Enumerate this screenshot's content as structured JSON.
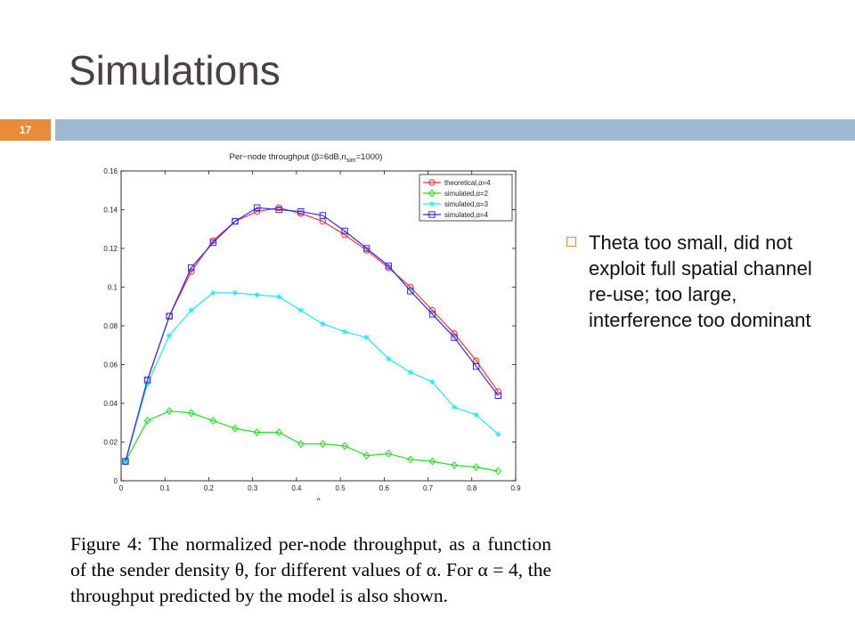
{
  "slide": {
    "title": "Simulations",
    "page_number": "17",
    "bullet": "Theta too small, did not exploit  full spatial channel re-use; too large, interference too dominant",
    "caption": "Figure 4: The normalized per-node throughput, as a function of the sender density θ, for different values of α. For α = 4, the throughput predicted by the model is also shown."
  },
  "colors": {
    "accent": "#e98c3a",
    "band": "#9fb8d2",
    "title": "#4a4240"
  },
  "chart_data": {
    "type": "line",
    "title": "Per−node throughput (β=6dB,n",
    "title_sub": "sim",
    "title_end": "=1000)",
    "xlabel": "θ",
    "ylabel": "",
    "xlim": [
      0,
      0.9
    ],
    "ylim": [
      0,
      0.16
    ],
    "xticks": [
      0,
      0.1,
      0.2,
      0.3,
      0.4,
      0.5,
      0.6,
      0.7,
      0.8,
      0.9
    ],
    "yticks": [
      0,
      0.02,
      0.04,
      0.06,
      0.08,
      0.1,
      0.12,
      0.14,
      0.16
    ],
    "x": [
      0.01,
      0.06,
      0.11,
      0.16,
      0.21,
      0.26,
      0.31,
      0.36,
      0.41,
      0.46,
      0.51,
      0.56,
      0.61,
      0.66,
      0.71,
      0.76,
      0.81,
      0.86
    ],
    "legend_position": "top-right",
    "series": [
      {
        "name": "theoretical,α=4",
        "color": "#ff3030",
        "marker": "circle",
        "values": [
          0.01,
          0.052,
          0.085,
          0.108,
          0.124,
          0.134,
          0.139,
          0.141,
          0.138,
          0.134,
          0.127,
          0.119,
          0.11,
          0.1,
          0.088,
          0.076,
          0.062,
          0.046
        ]
      },
      {
        "name": "simulated,α=2",
        "color": "#22dd22",
        "marker": "diamond",
        "values": [
          0.01,
          0.031,
          0.036,
          0.035,
          0.031,
          0.027,
          0.025,
          0.025,
          0.019,
          0.019,
          0.018,
          0.013,
          0.014,
          0.011,
          0.01,
          0.008,
          0.007,
          0.005
        ]
      },
      {
        "name": "simulated,α=3",
        "color": "#22e6f0",
        "marker": "star",
        "values": [
          0.01,
          0.05,
          0.075,
          0.088,
          0.097,
          0.097,
          0.096,
          0.095,
          0.088,
          0.081,
          0.077,
          0.074,
          0.063,
          0.056,
          0.051,
          0.038,
          0.034,
          0.024
        ]
      },
      {
        "name": "simulated,α=4",
        "color": "#2a2aff",
        "marker": "square",
        "values": [
          0.01,
          0.052,
          0.085,
          0.11,
          0.123,
          0.134,
          0.141,
          0.14,
          0.139,
          0.137,
          0.129,
          0.12,
          0.111,
          0.098,
          0.086,
          0.074,
          0.059,
          0.044
        ]
      }
    ]
  }
}
